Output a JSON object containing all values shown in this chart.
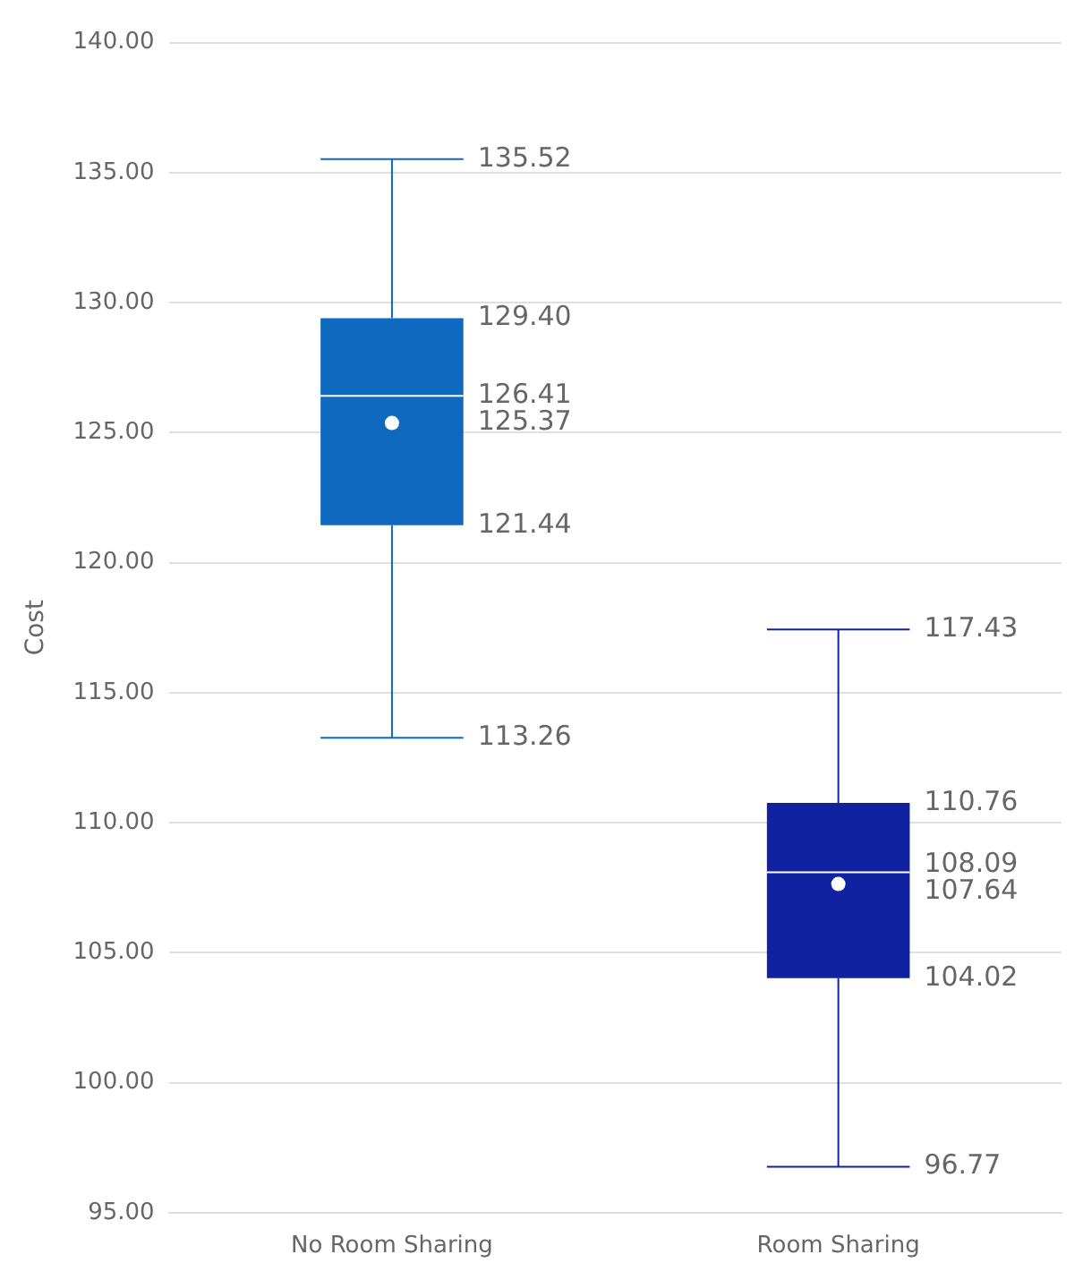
{
  "chart_data": {
    "type": "box",
    "ylabel": "Cost",
    "categories": [
      "No Room Sharing",
      "Room Sharing"
    ],
    "boxes": [
      {
        "low": 113.26,
        "q1": 121.44,
        "median": 126.41,
        "q3": 129.4,
        "high": 135.52,
        "mean": 125.37
      },
      {
        "low": 96.77,
        "q1": 104.02,
        "median": 108.09,
        "q3": 110.76,
        "high": 117.43,
        "mean": 107.64
      }
    ],
    "colors": [
      "#0f6abf",
      "#1022a0"
    ],
    "ylim": [
      95,
      140
    ],
    "yticks": [
      {
        "value": 95,
        "label": "95.00"
      },
      {
        "value": 100,
        "label": "100.00"
      },
      {
        "value": 105,
        "label": "105.00"
      },
      {
        "value": 110,
        "label": "110.00"
      },
      {
        "value": 115,
        "label": "115.00"
      },
      {
        "value": 120,
        "label": "120.00"
      },
      {
        "value": 125,
        "label": "125.00"
      },
      {
        "value": 130,
        "label": "130.00"
      },
      {
        "value": 135,
        "label": "135.00"
      },
      {
        "value": 140,
        "label": "140.00"
      }
    ],
    "value_labels": [
      [
        "135.52",
        "129.40",
        "126.41",
        "125.37",
        "121.44",
        "113.26"
      ],
      [
        "117.43",
        "110.76",
        "108.09",
        "107.64",
        "104.02",
        "96.77"
      ]
    ],
    "grid": "y",
    "legend": false
  }
}
